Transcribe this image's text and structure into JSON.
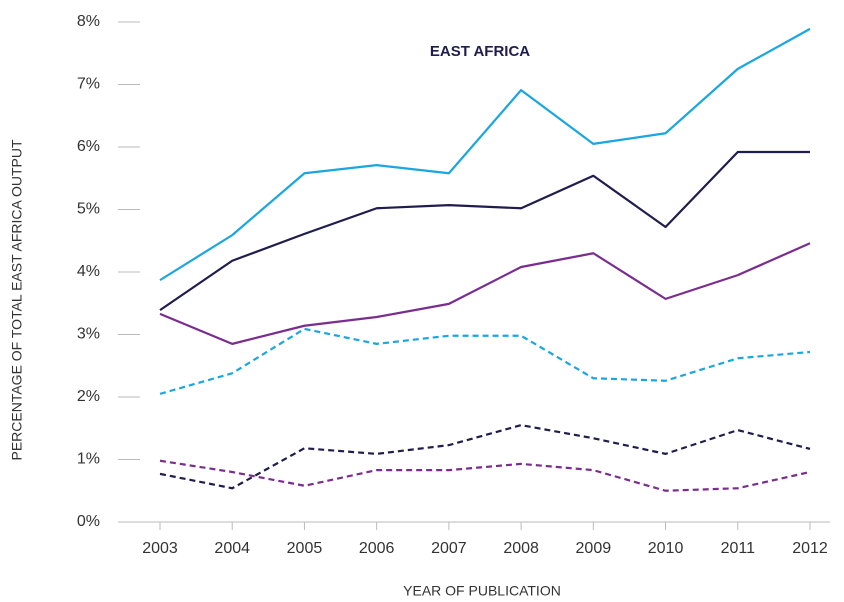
{
  "chart_data": {
    "type": "line",
    "title": "EAST AFRICA",
    "x_label": "YEAR OF PUBLICATION",
    "y_label": "PERCENTAGE OF TOTAL EAST AFRICA OUTPUT",
    "categories": [
      "2003",
      "2004",
      "2005",
      "2006",
      "2007",
      "2008",
      "2009",
      "2010",
      "2011",
      "2012"
    ],
    "ylim": [
      0,
      8
    ],
    "yticks": [
      {
        "value": 0,
        "label": "0%"
      },
      {
        "value": 1,
        "label": "1%"
      },
      {
        "value": 2,
        "label": "2%"
      },
      {
        "value": 3,
        "label": "3%"
      },
      {
        "value": 4,
        "label": "4%"
      },
      {
        "value": 5,
        "label": "5%"
      },
      {
        "value": 6,
        "label": "6%"
      },
      {
        "value": 7,
        "label": "7%"
      },
      {
        "value": 8,
        "label": "8%"
      }
    ],
    "series": [
      {
        "color": "#1aa6e0",
        "style": "solid",
        "values": [
          3.87,
          4.59,
          5.58,
          5.71,
          5.58,
          6.91,
          6.05,
          6.22,
          7.25,
          7.89
        ]
      },
      {
        "color": "#1f1d4d",
        "style": "solid",
        "values": [
          3.39,
          4.18,
          4.61,
          5.02,
          5.07,
          5.02,
          5.54,
          4.72,
          5.92,
          5.92
        ]
      },
      {
        "color": "#7a2d8e",
        "style": "solid",
        "values": [
          3.33,
          2.85,
          3.14,
          3.28,
          3.49,
          4.08,
          4.3,
          3.57,
          3.95,
          4.46
        ]
      },
      {
        "color": "#1aa6e0",
        "style": "dashed",
        "values": [
          2.05,
          2.38,
          3.09,
          2.85,
          2.98,
          2.98,
          2.3,
          2.26,
          2.62,
          2.72
        ]
      },
      {
        "color": "#1f1d4d",
        "style": "dashed",
        "values": [
          0.77,
          0.54,
          1.18,
          1.09,
          1.23,
          1.55,
          1.34,
          1.09,
          1.47,
          1.17
        ]
      },
      {
        "color": "#7a2d8e",
        "style": "dashed",
        "values": [
          0.98,
          0.8,
          0.58,
          0.83,
          0.83,
          0.93,
          0.83,
          0.5,
          0.54,
          0.8
        ]
      }
    ]
  }
}
